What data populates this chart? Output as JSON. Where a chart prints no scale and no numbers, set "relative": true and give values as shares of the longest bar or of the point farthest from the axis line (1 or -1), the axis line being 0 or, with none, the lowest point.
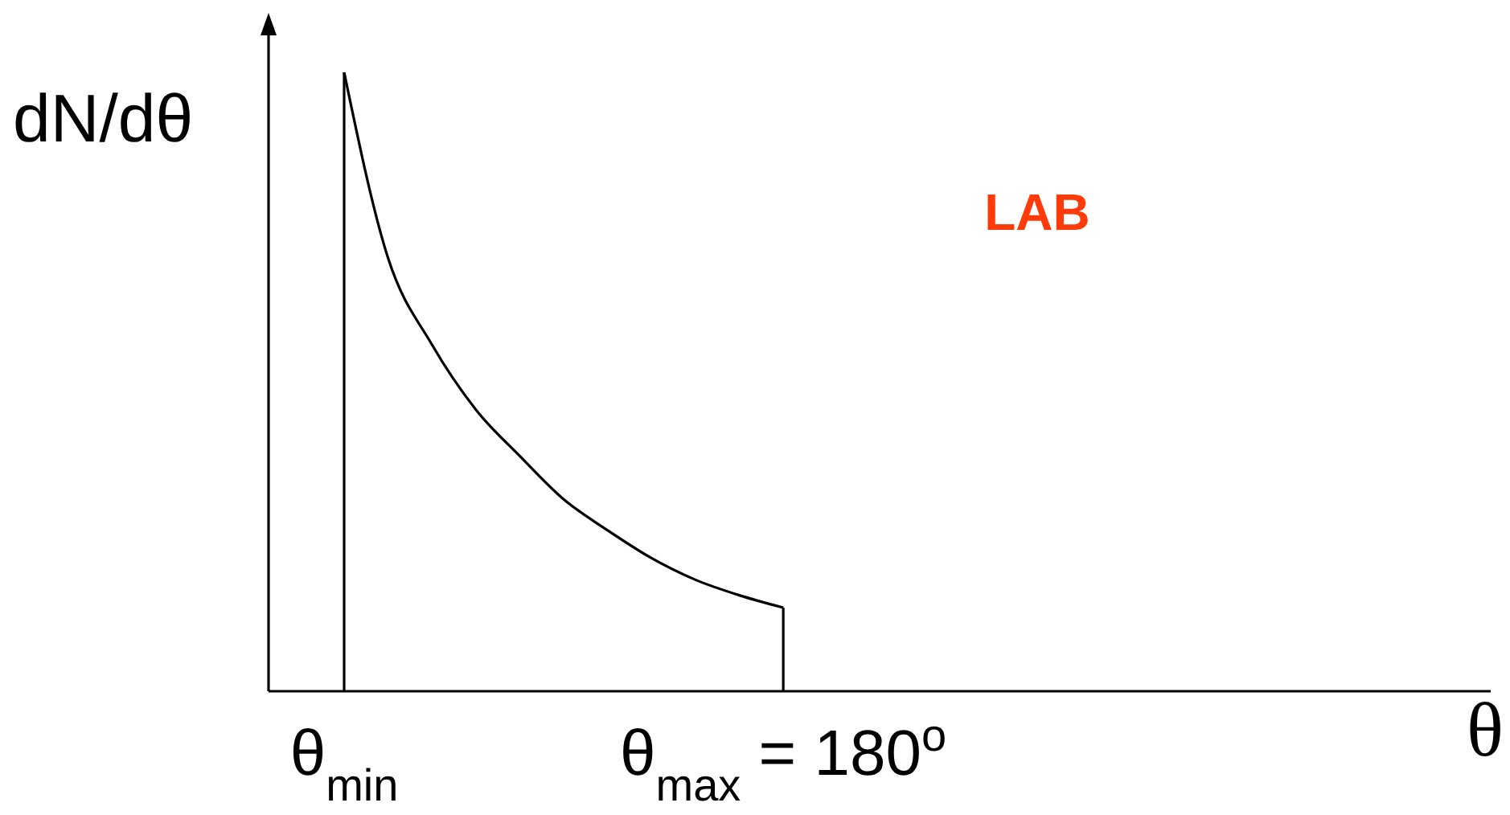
{
  "chart_data": {
    "type": "line",
    "relative": true,
    "ylabel": "dN/dθ",
    "xlabel": "θ",
    "annotations": [
      "LAB"
    ],
    "categories": [
      "θ$_{min}$",
      null,
      null,
      null,
      null,
      null,
      null,
      null,
      null,
      null,
      "θ$_{max}$ = 180$^{o}$",
      null,
      null,
      null,
      null,
      null,
      null,
      null,
      null,
      null,
      null,
      null,
      null,
      null,
      null,
      null,
      null
    ],
    "series": [
      {
        "color": "#000000",
        "values": [
          1,
          0.7,
          0.56,
          0.455,
          0.38,
          0.31,
          0.26,
          0.215,
          0.18,
          0.155,
          0.135,
          null,
          null,
          null,
          null,
          null,
          null,
          null,
          null,
          null,
          null,
          null,
          null,
          null,
          null,
          null,
          null
        ]
      }
    ],
    "marker": "none",
    "line_style": "solid"
  }
}
